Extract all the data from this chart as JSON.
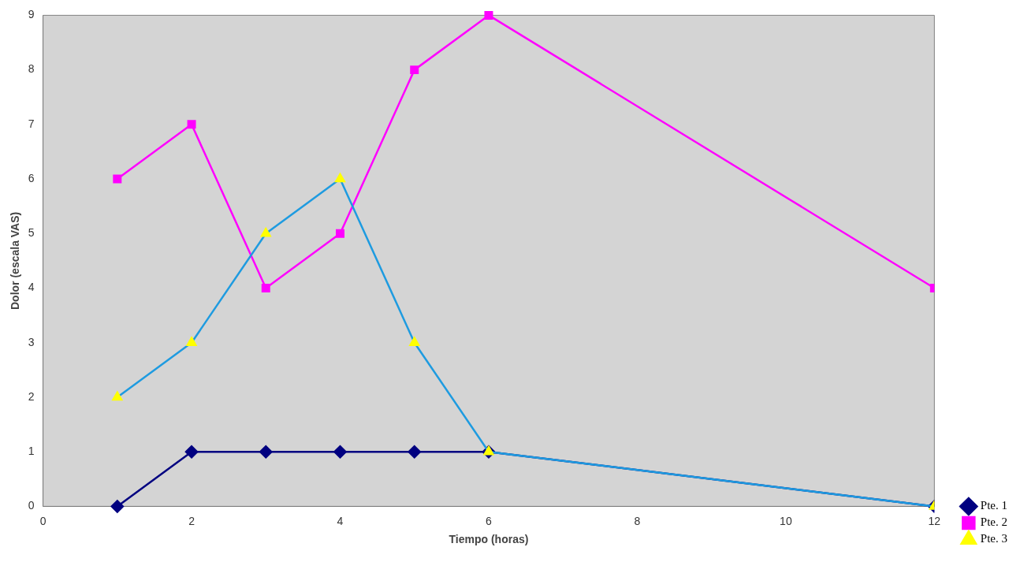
{
  "chart_data": {
    "type": "line",
    "xlabel": "Tiempo (horas)",
    "ylabel": "Dolor (escala VAS)",
    "x": [
      1,
      2,
      3,
      4,
      5,
      6,
      12
    ],
    "series": [
      {
        "name": "Pte. 1",
        "color": "#000080",
        "marker": "diamond",
        "values": [
          0,
          1,
          1,
          1,
          1,
          1,
          0
        ]
      },
      {
        "name": "Pte. 2",
        "color": "#ff00ff",
        "marker": "square",
        "values": [
          6,
          7,
          4,
          5,
          8,
          9,
          4
        ]
      },
      {
        "name": "Pte. 3",
        "color": "#1e9be0",
        "marker": "triangle",
        "colors": [
          "#ffff00",
          "#ffff00",
          "#ffff00",
          "#ffff00",
          "#ffff00",
          "#ffff00",
          "#ffff00"
        ],
        "values": [
          2,
          3,
          5,
          6,
          3,
          1,
          0
        ]
      }
    ],
    "xlim": [
      0,
      12
    ],
    "xticks": [
      0,
      2,
      4,
      6,
      8,
      10,
      12
    ],
    "ylim": [
      0,
      9
    ],
    "yticks": [
      0,
      1,
      2,
      3,
      4,
      5,
      6,
      7,
      8,
      9
    ],
    "grid": false,
    "legend": "bottom right"
  }
}
